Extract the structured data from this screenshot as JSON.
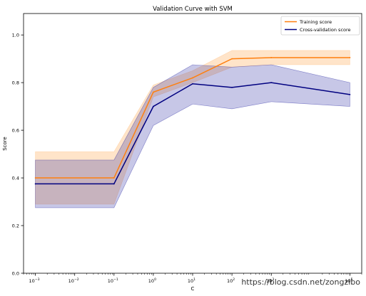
{
  "chart_data": {
    "type": "line",
    "title": "Validation Curve with SVM",
    "xlabel": "C",
    "ylabel": "Score",
    "xscale": "log",
    "x": [
      0.001,
      0.1,
      1,
      10,
      100,
      1000,
      100000
    ],
    "xticks": [
      0.001,
      0.01,
      0.1,
      1,
      10,
      100,
      1000,
      100000
    ],
    "xtick_base": [
      "10",
      "10",
      "10",
      "10",
      "10",
      "10",
      "10",
      "10"
    ],
    "xtick_exp": [
      "−3",
      "−2",
      "−1",
      "0",
      "1",
      "2",
      "3",
      "5"
    ],
    "xlim": [
      0.0005,
      200000
    ],
    "ylim": [
      0.0,
      1.09
    ],
    "yticks": [
      0.0,
      0.2,
      0.4,
      0.6,
      0.8,
      1.0
    ],
    "ytick_labels": [
      "0.0",
      "0.2",
      "0.4",
      "0.6",
      "0.8",
      "1.0"
    ],
    "grid": false,
    "legend_position": "top-right",
    "series": [
      {
        "name": "Training score",
        "color": "#ff7f0e",
        "band_color": "#ffbb78",
        "values": [
          0.4,
          0.4,
          0.76,
          0.82,
          0.9,
          0.905,
          0.905
        ],
        "lower": [
          0.29,
          0.29,
          0.74,
          0.8,
          0.865,
          0.875,
          0.875
        ],
        "upper": [
          0.51,
          0.51,
          0.79,
          0.85,
          0.935,
          0.935,
          0.935
        ]
      },
      {
        "name": "Cross-validation score",
        "color": "#000080",
        "band_color": "#1f1fa0",
        "values": [
          0.375,
          0.375,
          0.7,
          0.795,
          0.78,
          0.8,
          0.75
        ],
        "lower": [
          0.275,
          0.275,
          0.62,
          0.71,
          0.69,
          0.72,
          0.7
        ],
        "upper": [
          0.475,
          0.475,
          0.78,
          0.875,
          0.865,
          0.875,
          0.8
        ]
      }
    ]
  },
  "watermark": "https://blog.csdn.net/zongzibo"
}
